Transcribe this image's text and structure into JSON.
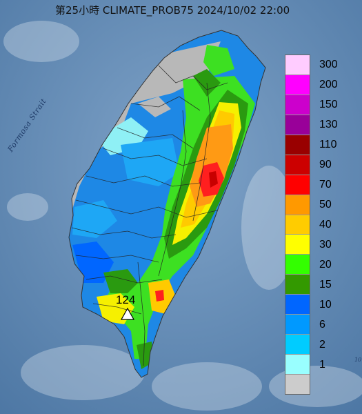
{
  "header": {
    "title": "第25小時  CLIMATE_PROB75 2024/10/02 22:00"
  },
  "map": {
    "strait_label": "Formosa Strait",
    "corner_label": "10",
    "max_marker_value": "124",
    "max_marker_icon": "triangle-icon"
  },
  "legend": {
    "items": [
      {
        "label": "300",
        "color": "#ffccff"
      },
      {
        "label": "200",
        "color": "#ff00ff"
      },
      {
        "label": "150",
        "color": "#cc00cc"
      },
      {
        "label": "130",
        "color": "#990099"
      },
      {
        "label": "110",
        "color": "#990000"
      },
      {
        "label": "90",
        "color": "#cc0000"
      },
      {
        "label": "70",
        "color": "#ff0000"
      },
      {
        "label": "50",
        "color": "#ff9900"
      },
      {
        "label": "40",
        "color": "#ffcc00"
      },
      {
        "label": "30",
        "color": "#ffff00"
      },
      {
        "label": "20",
        "color": "#33ff00"
      },
      {
        "label": "15",
        "color": "#339900"
      },
      {
        "label": "10",
        "color": "#0066ff"
      },
      {
        "label": "6",
        "color": "#0099ff"
      },
      {
        "label": "2",
        "color": "#00ccff"
      },
      {
        "label": "1",
        "color": "#99ffff"
      },
      {
        "label": "",
        "color": "#cccccc"
      }
    ]
  }
}
